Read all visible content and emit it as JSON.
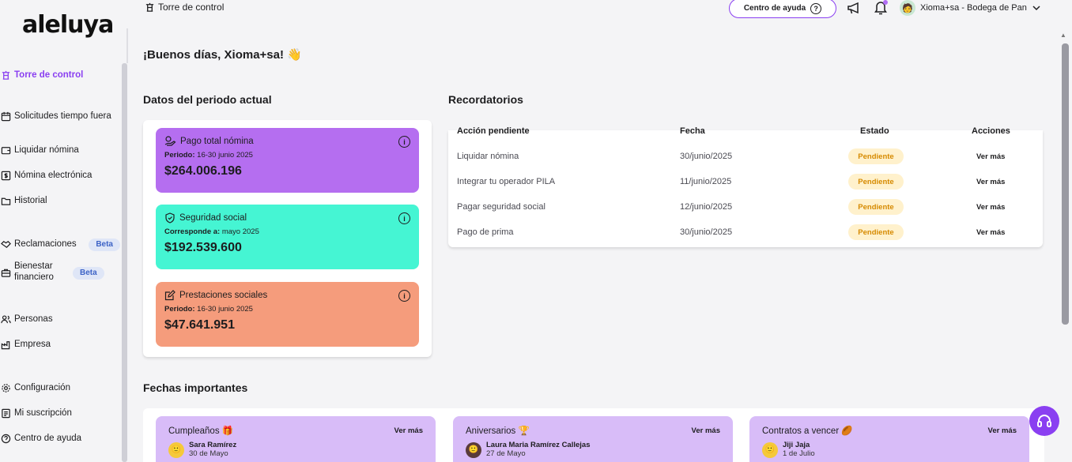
{
  "brand": {
    "logo": "aleluya"
  },
  "sidebar": {
    "items": [
      {
        "label": "Torre de control",
        "icon": "tower-icon",
        "active": true
      },
      {
        "label": "Solicitudes tiempo fuera",
        "icon": "calendar-icon"
      },
      {
        "label": "Liquidar nómina",
        "icon": "wallet-icon"
      },
      {
        "label": "Nómina electrónica",
        "icon": "dollar-document-icon"
      },
      {
        "label": "Historial",
        "icon": "folder-icon"
      },
      {
        "label": "Reclamaciones",
        "icon": "handshake-icon",
        "badge": "Beta"
      },
      {
        "label": "Bienestar financiero",
        "icon": "briefcase-icon",
        "badge": "Beta"
      },
      {
        "label": "Personas",
        "icon": "people-icon"
      },
      {
        "label": "Empresa",
        "icon": "factory-icon"
      },
      {
        "label": "Configuración",
        "icon": "gear-icon"
      },
      {
        "label": "Mi suscripción",
        "icon": "receipt-icon"
      },
      {
        "label": "Centro de ayuda",
        "icon": "help-circle-icon"
      }
    ]
  },
  "topbar": {
    "title": "Torre de control",
    "help_button": "Centro de ayuda",
    "user_name": "Xioma+sa - Bodega de Pan"
  },
  "main": {
    "greeting": "¡Buenos días, Xioma+sa! 👋",
    "period_title": "Datos del periodo actual",
    "cards": [
      {
        "title": "Pago total nómina",
        "meta_label": "Periodo:",
        "meta_value": " 16-30 junio 2025",
        "amount": "$264.006.196",
        "color": "#b56ef0"
      },
      {
        "title": "Seguridad social",
        "meta_label": "Corresponde a:",
        "meta_value": " mayo 2025",
        "amount": "$192.539.600",
        "color": "#45f5d3"
      },
      {
        "title": "Prestaciones sociales",
        "meta_label": "Periodo:",
        "meta_value": " 16-30 junio 2025",
        "amount": "$47.641.951",
        "color": "#f59c7c"
      }
    ],
    "reminders": {
      "title": "Recordatorios",
      "headers": {
        "action": "Acción pendiente",
        "date": "Fecha",
        "status": "Estado",
        "actions": "Acciones"
      },
      "rows": [
        {
          "action": "Liquidar nómina",
          "date": "30/junio/2025",
          "status": "Pendiente",
          "link": "Ver más"
        },
        {
          "action": "Integrar tu operador PILA",
          "date": "11/junio/2025",
          "status": "Pendiente",
          "link": "Ver más"
        },
        {
          "action": "Pagar seguridad social",
          "date": "12/junio/2025",
          "status": "Pendiente",
          "link": "Ver más"
        },
        {
          "action": "Pago de prima",
          "date": "30/junio/2025",
          "status": "Pendiente",
          "link": "Ver más"
        }
      ]
    },
    "dates": {
      "title": "Fechas importantes",
      "cards": [
        {
          "title": "Cumpleaños 🎁",
          "link": "Ver más",
          "person": "Sara Ramírez",
          "date": "30 de Mayo"
        },
        {
          "title": "Aniversarios 🏆",
          "link": "Ver más",
          "person": "Laura Maria Ramírez Callejas",
          "date": "27 de Mayo"
        },
        {
          "title": "Contratos a vencer 🏉",
          "link": "Ver más",
          "person": "Jiji Jaja",
          "date": "1 de Julio"
        }
      ]
    }
  },
  "colors": {
    "accent": "#8a3ff1",
    "pending_bg": "#fff1cc",
    "pending_text": "#d68a00",
    "date_card": "#d8bcf8"
  }
}
